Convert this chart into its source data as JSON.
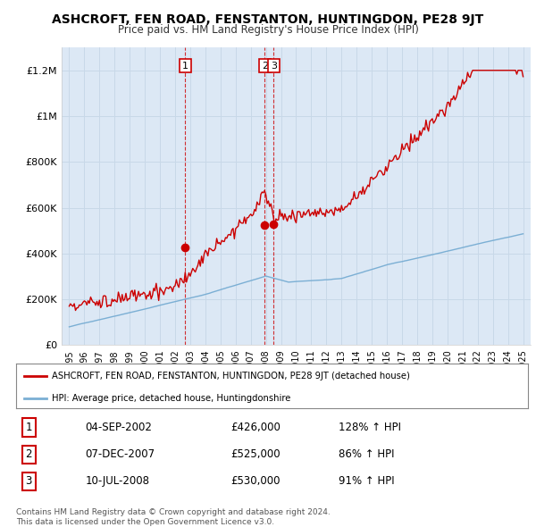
{
  "title": "ASHCROFT, FEN ROAD, FENSTANTON, HUNTINGDON, PE28 9JT",
  "subtitle": "Price paid vs. HM Land Registry's House Price Index (HPI)",
  "legend_line1": "ASHCROFT, FEN ROAD, FENSTANTON, HUNTINGDON, PE28 9JT (detached house)",
  "legend_line2": "HPI: Average price, detached house, Huntingdonshire",
  "transactions": [
    {
      "num": 1,
      "date": "04-SEP-2002",
      "price": 426000,
      "hpi_pct": "128% ↑ HPI",
      "x_year": 2002.67
    },
    {
      "num": 2,
      "date": "07-DEC-2007",
      "price": 525000,
      "hpi_pct": "86% ↑ HPI",
      "x_year": 2007.92
    },
    {
      "num": 3,
      "date": "10-JUL-2008",
      "price": 530000,
      "hpi_pct": "91% ↑ HPI",
      "x_year": 2008.52
    }
  ],
  "footer": "Contains HM Land Registry data © Crown copyright and database right 2024.\nThis data is licensed under the Open Government Licence v3.0.",
  "price_color": "#cc0000",
  "hpi_color": "#7bafd4",
  "plot_bg_color": "#dce8f5",
  "ylim": [
    0,
    1300000
  ],
  "xlim_start": 1994.5,
  "xlim_end": 2025.5,
  "yticks": [
    0,
    200000,
    400000,
    600000,
    800000,
    1000000,
    1200000
  ],
  "ytick_labels": [
    "£0",
    "£200K",
    "£400K",
    "£600K",
    "£800K",
    "£1M",
    "£1.2M"
  ],
  "xticks": [
    1995,
    1996,
    1997,
    1998,
    1999,
    2000,
    2001,
    2002,
    2003,
    2004,
    2005,
    2006,
    2007,
    2008,
    2009,
    2010,
    2011,
    2012,
    2013,
    2014,
    2015,
    2016,
    2017,
    2018,
    2019,
    2020,
    2021,
    2022,
    2023,
    2024,
    2025
  ],
  "bg_color": "#ffffff",
  "grid_color": "#c8d8e8"
}
